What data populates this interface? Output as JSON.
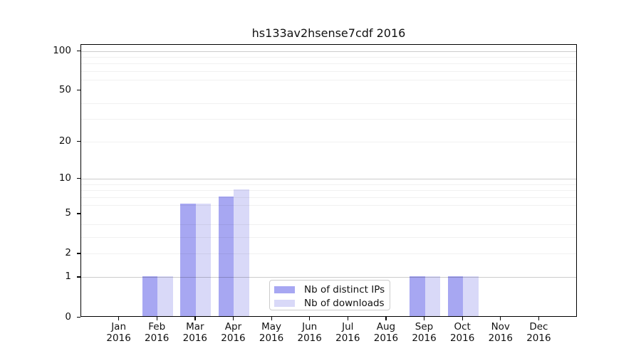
{
  "title": "hs133av2hsense7cdf 2016",
  "chart_data": {
    "type": "bar",
    "title": "hs133av2hsense7cdf 2016",
    "categories": [
      "Jan",
      "Feb",
      "Mar",
      "Apr",
      "May",
      "Jun",
      "Jul",
      "Aug",
      "Sep",
      "Oct",
      "Nov",
      "Dec"
    ],
    "year": "2016",
    "series": [
      {
        "name": "Nb of distinct IPs",
        "color": "#a7a7f2",
        "values": [
          0,
          1,
          6,
          7,
          0,
          0,
          0,
          0,
          1,
          1,
          0,
          0
        ]
      },
      {
        "name": "Nb of downloads",
        "color": "#d9d9f8",
        "values": [
          0,
          1,
          6,
          8,
          0,
          0,
          0,
          0,
          1,
          1,
          0,
          0
        ]
      }
    ],
    "xlabel": "",
    "ylabel": "",
    "yscale": "log1p",
    "ylim": [
      0,
      112
    ],
    "y_tick_values": [
      0,
      1,
      2,
      5,
      10,
      20,
      50,
      100
    ],
    "y_tick_labels": [
      "0",
      "1",
      "2",
      "5",
      "10",
      "20",
      "50",
      "100"
    ],
    "y_major_gridlines": [
      1,
      10,
      100
    ],
    "y_minor_gridlines": [
      2,
      3,
      4,
      6,
      7,
      8,
      9,
      20,
      30,
      40,
      60,
      70,
      80,
      90
    ],
    "grid": "horizontal",
    "legend_position": "bottom-center-inside",
    "colors": {
      "distinct_ips": "#a7a7f2",
      "downloads": "#d9d9f8",
      "spine": "#000000",
      "background": "#ffffff"
    }
  }
}
